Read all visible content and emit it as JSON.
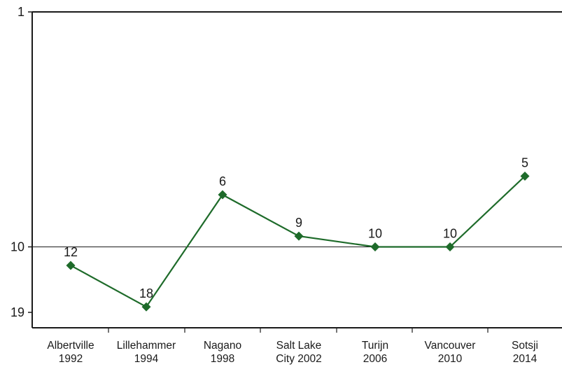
{
  "chart_data": {
    "type": "line",
    "categories": [
      [
        "Albertville",
        "1992"
      ],
      [
        "Lillehammer",
        "1994"
      ],
      [
        "Nagano",
        "1998"
      ],
      [
        "Salt Lake",
        "City 2002"
      ],
      [
        "Turijn",
        "2006"
      ],
      [
        "Vancouver",
        "2010"
      ],
      [
        "Sotsji",
        "2014"
      ]
    ],
    "values": [
      12,
      18,
      6,
      9,
      10,
      10,
      5
    ],
    "data_labels": [
      "12",
      "18",
      "6",
      "9",
      "10",
      "10",
      "5"
    ],
    "y_ticks": [
      "1",
      "10",
      "19"
    ],
    "y_axis": {
      "min": 1,
      "max": 19,
      "reversed": true,
      "scale": "log"
    },
    "reference_line_value": 10,
    "grid": false,
    "colors": {
      "line": "#1e6b2a",
      "marker": "#1e6b2a",
      "axis": "#1a1a1a",
      "reference_line": "#1a1a1a"
    }
  }
}
